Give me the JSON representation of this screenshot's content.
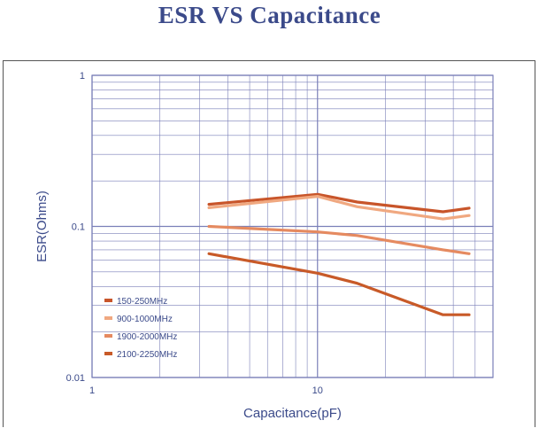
{
  "title": "ESR VS Capacitance",
  "chart_data": {
    "type": "line",
    "xscale": "log",
    "yscale": "log",
    "xlim": [
      1,
      60
    ],
    "ylim": [
      0.01,
      1
    ],
    "xlabel": "Capacitance(pF)",
    "ylabel": "ESR(Ohms)",
    "x_ticks": [
      {
        "value": 1,
        "label": "1"
      },
      {
        "value": 10,
        "label": "10"
      }
    ],
    "y_ticks": [
      {
        "value": 1,
        "label": "1"
      },
      {
        "value": 0.1,
        "label": "0.1"
      },
      {
        "value": 0.01,
        "label": "0.01"
      }
    ],
    "grid": true,
    "legend_position": "bottom-left",
    "series": [
      {
        "name": "150-250MHz",
        "color": "#c8552a",
        "x": [
          3.3,
          10,
          15,
          36,
          47
        ],
        "y": [
          0.14,
          0.163,
          0.145,
          0.125,
          0.132
        ]
      },
      {
        "name": "900-1000MHz",
        "color": "#f0a880",
        "x": [
          3.3,
          10,
          15,
          36,
          47
        ],
        "y": [
          0.133,
          0.158,
          0.135,
          0.112,
          0.118
        ]
      },
      {
        "name": "1900-2000MHz",
        "color": "#e58a60",
        "x": [
          3.3,
          10,
          15,
          36,
          47
        ],
        "y": [
          0.1,
          0.092,
          0.087,
          0.07,
          0.066
        ]
      },
      {
        "name": "2100-2250MHz",
        "color": "#c85a28",
        "x": [
          3.3,
          10,
          15,
          36,
          47
        ],
        "y": [
          0.066,
          0.049,
          0.042,
          0.026,
          0.026
        ]
      }
    ]
  }
}
